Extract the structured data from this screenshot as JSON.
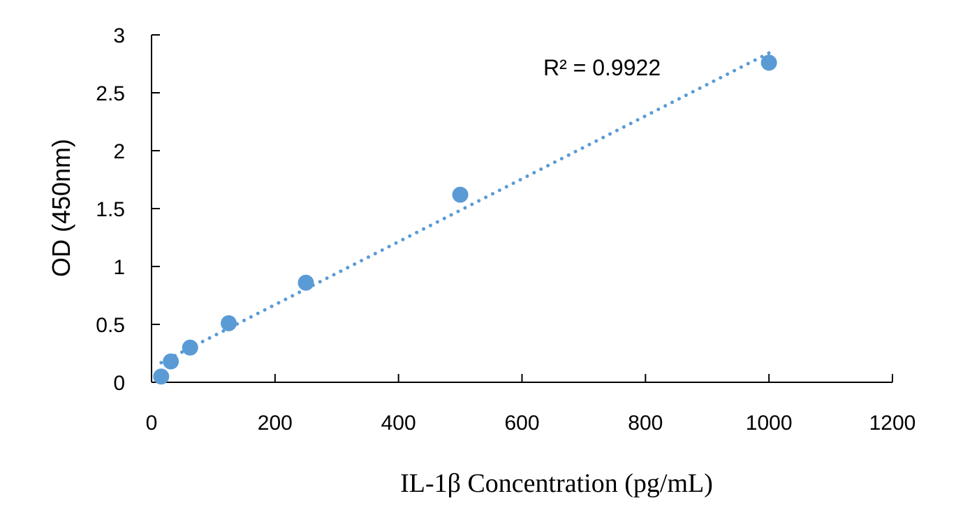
{
  "chart_data": {
    "type": "scatter",
    "title": "",
    "xlabel": "IL-1β Concentration (pg/mL)",
    "ylabel": "OD (450nm)",
    "xlim": [
      0,
      1200
    ],
    "ylim": [
      0,
      3
    ],
    "x_ticks": [
      0,
      200,
      400,
      600,
      800,
      1000,
      1200
    ],
    "y_ticks": [
      0,
      0.5,
      1,
      1.5,
      2,
      2.5,
      3
    ],
    "x_tick_labels": [
      "0",
      "200",
      "400",
      "600",
      "800",
      "1000",
      "1200"
    ],
    "y_tick_labels": [
      "0",
      "0.5",
      "1",
      "1.5",
      "2",
      "2.5",
      "3"
    ],
    "grid": false,
    "legend": "none",
    "marker_color": "#5B9BD5",
    "trendline_color": "#5B9BD5",
    "series": [
      {
        "x": [
          15.6,
          31.25,
          62.5,
          125,
          250,
          500,
          1000
        ],
        "y": [
          0.05,
          0.18,
          0.3,
          0.51,
          0.86,
          1.62,
          2.76
        ]
      }
    ],
    "trendline": {
      "type": "linear",
      "style": "dotted",
      "x_range": [
        15.6,
        1000
      ]
    },
    "annotations": [
      {
        "text": "R² = 0.9922"
      }
    ]
  }
}
